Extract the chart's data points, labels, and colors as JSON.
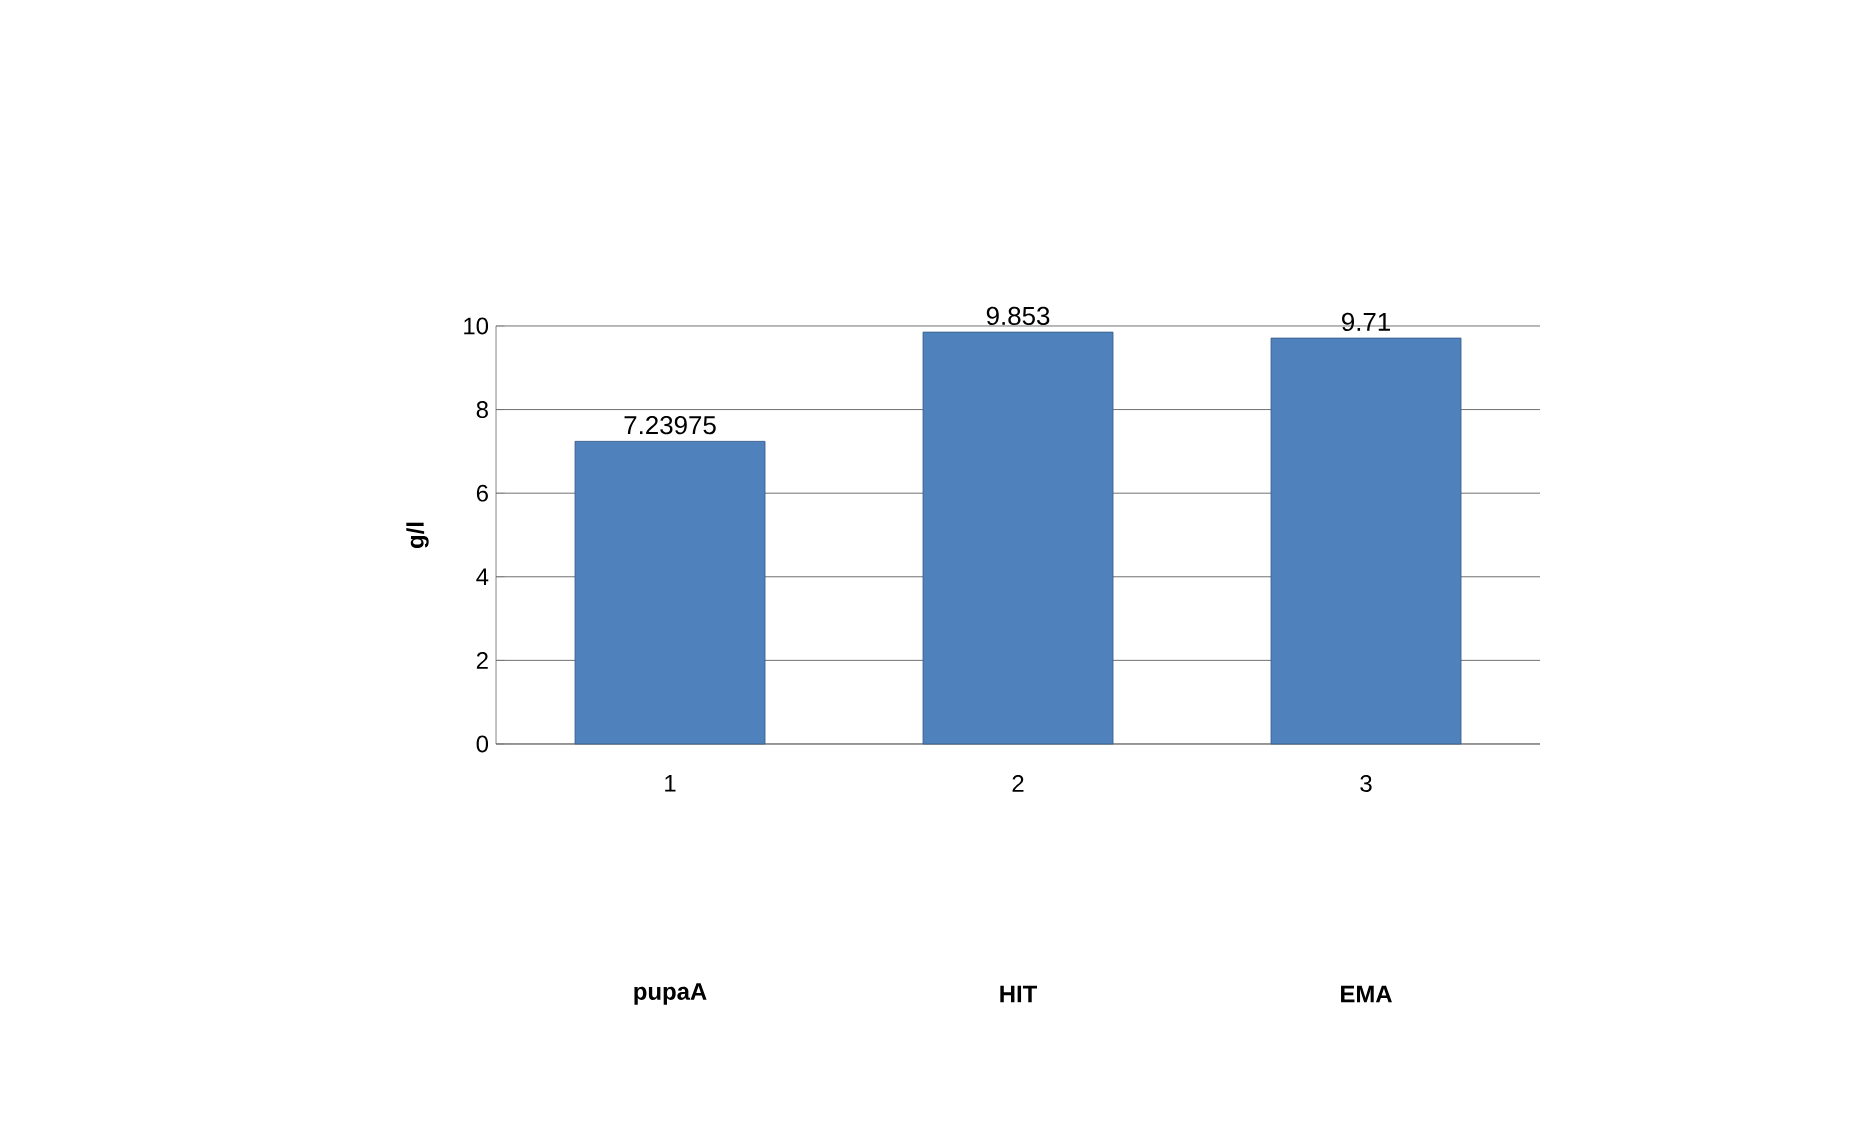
{
  "chart_data": {
    "type": "bar",
    "ylabel": "g/l",
    "categories": [
      "1",
      "2",
      "3"
    ],
    "values": [
      7.23975,
      9.853,
      9.71
    ],
    "color": "#4f81bd",
    "ylim": [
      0,
      10
    ],
    "yticks": [
      0,
      2,
      4,
      6,
      8,
      10
    ],
    "grid": "y",
    "data_labels": true,
    "annotations": [
      "pupaA",
      "HIT",
      "EMA"
    ]
  }
}
